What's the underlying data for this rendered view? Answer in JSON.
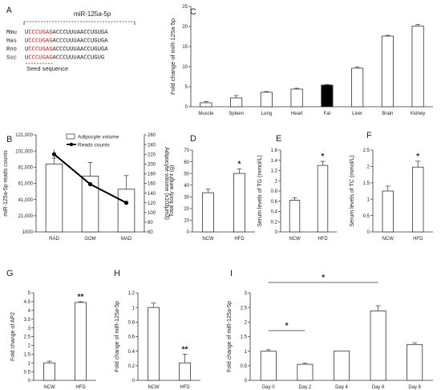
{
  "panel_a": {
    "letter": "A",
    "header": "miR-125a-5p",
    "species": [
      "Mmu",
      "Has",
      "Rno",
      "Ssc"
    ],
    "seq_prefix": "U",
    "seed": "CCCUGAG",
    "tails": [
      "ACCCUUUAACCUGUGA",
      "ACCCUUUAACCUGUGA",
      "ACCCUUUAACCUGUGA",
      "ACCCUUUAACCUGUG"
    ],
    "seed_label": "Seed sequence",
    "colors": {
      "seed": "#c0181a",
      "text": "#222222"
    }
  },
  "chart_data": [
    {
      "panel": "B",
      "type": "bar+line",
      "categories": [
        "RAD",
        "GOM",
        "MAD"
      ],
      "series": [
        {
          "name": "Adipocyte volume",
          "type": "bar",
          "axis": "right",
          "values": [
            200,
            175,
            148
          ],
          "errors": [
            12,
            28,
            28
          ]
        },
        {
          "name": "Reads counts",
          "type": "line",
          "axis": "left",
          "values": [
            97000,
            60000,
            37000
          ],
          "errors": [
            6000,
            0,
            0
          ]
        }
      ],
      "ylabel": "miR-125a-5p reads counts",
      "ylabel_right": "Adipocyte volume (x103μm3)",
      "yticks": [
        "1000",
        "21,000",
        "41,000",
        "61,000",
        "81,000",
        "101,000",
        "121,000"
      ],
      "ylim": [
        1000,
        121000
      ],
      "yticks_right": [
        "60",
        "80",
        "100",
        "120",
        "140",
        "160",
        "180",
        "200",
        "220",
        "240",
        "260"
      ],
      "ylim_right": [
        60,
        260
      ],
      "legend": "top-right"
    },
    {
      "panel": "C",
      "type": "bar",
      "categories": [
        "Muscle",
        "Spleen",
        "Lung",
        "Heart",
        "Fat",
        "Liver",
        "Brain",
        "Kidney"
      ],
      "values": [
        1,
        2.2,
        3.6,
        4.4,
        5.4,
        9.6,
        17.6,
        20.1
      ],
      "errors": [
        0.3,
        0.6,
        0.2,
        0.2,
        0.15,
        0.3,
        0.2,
        0.4
      ],
      "highlight": "Fat",
      "ylabel": "Fold change of miR-125a-5p",
      "yticks": [
        "0",
        "5",
        "10",
        "15",
        "20",
        "25"
      ],
      "ylim": [
        0,
        25
      ]
    },
    {
      "panel": "D",
      "type": "bar",
      "categories": [
        "NCW",
        "HFD"
      ],
      "values": [
        33.5,
        50
      ],
      "errors": [
        3,
        4
      ],
      "stars": [
        "",
        "*"
      ],
      "ylabel": "Total body weight (g)",
      "yticks": [
        "0",
        "10",
        "20",
        "30",
        "40",
        "50",
        "60",
        "70"
      ],
      "ylim": [
        0,
        70
      ]
    },
    {
      "panel": "E",
      "type": "bar",
      "categories": [
        "NCW",
        "HFD"
      ],
      "values": [
        0.62,
        1.3
      ],
      "errors": [
        0.05,
        0.08
      ],
      "stars": [
        "",
        "*"
      ],
      "ylabel": "Serum levels of TG (mmol/L)",
      "yticks": [
        "0",
        "0.2",
        "0.4",
        "0.6",
        "0.8",
        "1",
        "1.2",
        "1.4",
        "1.6"
      ],
      "ylim": [
        0,
        1.6
      ]
    },
    {
      "panel": "F",
      "type": "bar",
      "categories": [
        "NCW",
        "HFD"
      ],
      "values": [
        1.25,
        1.98
      ],
      "errors": [
        0.15,
        0.18
      ],
      "stars": [
        "",
        "*"
      ],
      "ylabel": "Serum levels of TC (mmol/L)",
      "yticks": [
        "0",
        "0.5",
        "1",
        "1.5",
        "2",
        "2.5"
      ],
      "ylim": [
        0,
        2.5
      ]
    },
    {
      "panel": "G",
      "type": "bar",
      "categories": [
        "NCW",
        "HFD"
      ],
      "values": [
        1,
        4.45
      ],
      "errors": [
        0.1,
        0.05
      ],
      "stars": [
        "",
        "**"
      ],
      "ylabel": "Fold change of AP2",
      "yticks": [
        "0",
        "0.5",
        "1",
        "1.5",
        "2",
        "2.5",
        "3",
        "3.5",
        "4",
        "4.5",
        "5"
      ],
      "ylim": [
        0,
        5
      ]
    },
    {
      "panel": "H",
      "type": "bar",
      "categories": [
        "NCW",
        "HFD"
      ],
      "values": [
        1,
        0.24
      ],
      "errors": [
        0.06,
        0.12
      ],
      "stars": [
        "",
        "**"
      ],
      "ylabel": "Fold change of miR-125a-5p",
      "yticks": [
        "0",
        "0.2",
        "0.4",
        "0.6",
        "0.8",
        "1",
        "1.2"
      ],
      "ylim": [
        0,
        1.2
      ]
    },
    {
      "panel": "I",
      "type": "bar",
      "categories": [
        "Day 0",
        "Day 2",
        "Day 4",
        "Day 6",
        "Day 8"
      ],
      "values": [
        1,
        0.55,
        1.01,
        2.38,
        1.23
      ],
      "errors": [
        0.05,
        0.04,
        0,
        0.18,
        0.06
      ],
      "ylabel": "Fold change of miR-125a-5p",
      "yticks": [
        "0",
        "0.5",
        "1",
        "1.5",
        "2",
        "2.5",
        "3"
      ],
      "ylim": [
        0,
        3
      ],
      "brackets": [
        {
          "from": "Day 0",
          "to": "Day 2",
          "label": "*"
        },
        {
          "from": "Day 0",
          "to": "Day 6",
          "label": "*"
        }
      ]
    }
  ],
  "colors": {
    "bar": "#ffffff",
    "bar_highlight": "#000000",
    "axis": "#333333",
    "line": "#000000"
  }
}
